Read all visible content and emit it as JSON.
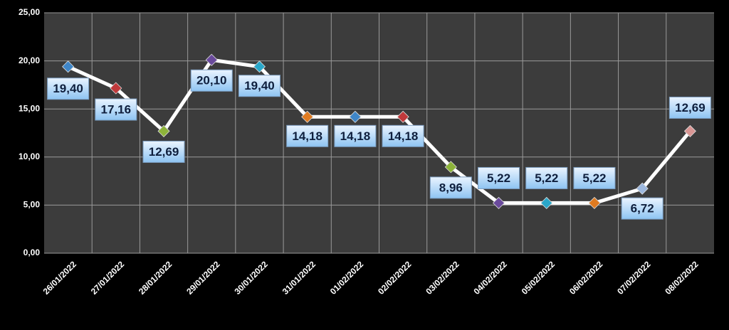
{
  "chart_data": {
    "type": "line",
    "categories": [
      "26/01/2022",
      "27/01/2022",
      "28/01/2022",
      "29/01/2022",
      "30/01/2022",
      "31/01/2022",
      "01/02/2022",
      "02/02/2022",
      "03/02/2022",
      "04/02/2022",
      "05/02/2022",
      "06/02/2022",
      "07/02/2022",
      "08/02/2022"
    ],
    "values": [
      19.4,
      17.16,
      12.69,
      20.1,
      19.4,
      14.18,
      14.18,
      14.18,
      8.96,
      5.22,
      5.22,
      5.22,
      6.72,
      12.69
    ],
    "value_labels": [
      "19,40",
      "17,16",
      "12,69",
      "20,10",
      "19,40",
      "14,18",
      "14,18",
      "14,18",
      "8,96",
      "5,22",
      "5,22",
      "5,22",
      "6,72",
      "12,69"
    ],
    "color": "#ffffff",
    "marker_colors": [
      "#3f86c8",
      "#c0393b",
      "#8db33a",
      "#6a4a9c",
      "#2aa7c9",
      "#e07b20",
      "#3f86c8",
      "#c0393b",
      "#8db33a",
      "#6a4a9c",
      "#2aa7c9",
      "#e07b20",
      "#9db8de",
      "#d99694"
    ],
    "ylim": [
      0,
      25
    ],
    "yticks": [
      {
        "value": 0,
        "label": "0,00"
      },
      {
        "value": 5,
        "label": "5,00"
      },
      {
        "value": 10,
        "label": "10,00"
      },
      {
        "value": 15,
        "label": "15,00"
      },
      {
        "value": 20,
        "label": "20,00"
      },
      {
        "value": 25,
        "label": "25,00"
      }
    ],
    "grid": true
  }
}
